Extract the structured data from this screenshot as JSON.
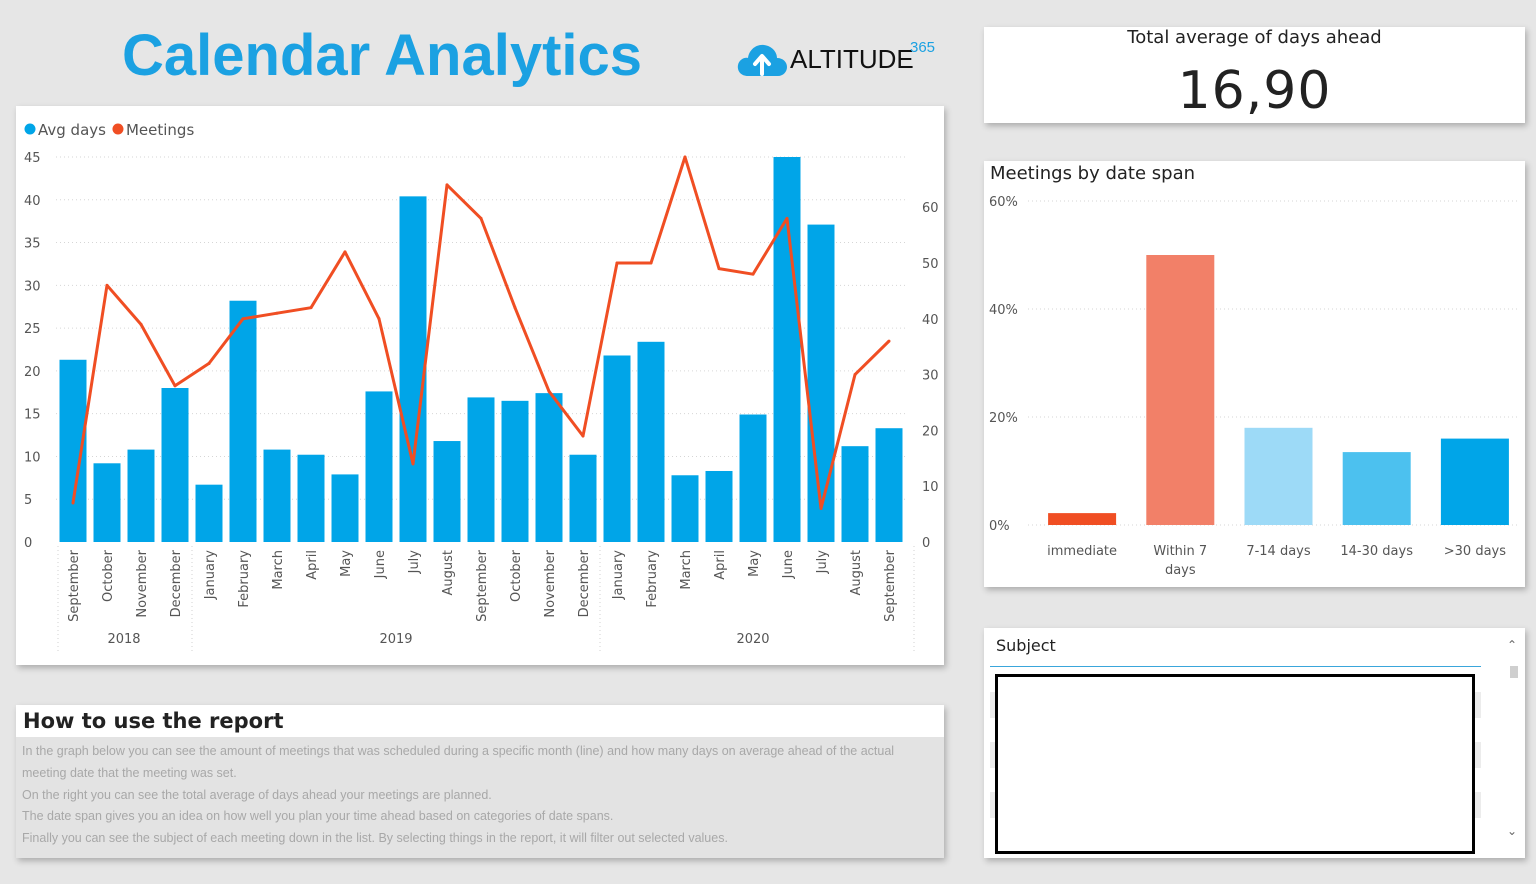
{
  "header": {
    "title": "Calendar Analytics",
    "logo_text": "ALTITUDE",
    "logo_sup": "365"
  },
  "kpi": {
    "label": "Total average of days ahead",
    "value": "16,90"
  },
  "colors": {
    "bar": "#00a5e8",
    "line": "#f04e23",
    "title": "#1ba1e2"
  },
  "chart_data": [
    {
      "type": "bar+line",
      "legend": [
        {
          "name": "Avg days",
          "color": "#00a5e8"
        },
        {
          "name": "Meetings",
          "color": "#f04e23"
        }
      ],
      "legend_position": "top-left",
      "categories": [
        "September",
        "October",
        "November",
        "December",
        "January",
        "February",
        "March",
        "April",
        "May",
        "June",
        "July",
        "August",
        "September",
        "October",
        "November",
        "December",
        "January",
        "February",
        "March",
        "April",
        "May",
        "June",
        "July",
        "August",
        "September"
      ],
      "years": [
        {
          "label": "2018",
          "start": 0,
          "end": 3
        },
        {
          "label": "2019",
          "start": 4,
          "end": 15
        },
        {
          "label": "2020",
          "start": 16,
          "end": 24
        }
      ],
      "series": [
        {
          "name": "Avg days",
          "type": "bar",
          "axis": "left",
          "values": [
            21.3,
            9.2,
            10.8,
            18,
            6.7,
            28.2,
            10.8,
            10.2,
            7.9,
            17.6,
            40.4,
            11.8,
            16.9,
            16.5,
            17.4,
            10.2,
            21.8,
            23.4,
            7.8,
            8.3,
            14.9,
            45,
            37.1,
            11.2,
            13.3
          ]
        },
        {
          "name": "Meetings",
          "type": "line",
          "axis": "right",
          "values": [
            7,
            46,
            39,
            28,
            32,
            40,
            41,
            42,
            52,
            40,
            14,
            64,
            58,
            42,
            27,
            19,
            50,
            50,
            69,
            49,
            48,
            58,
            6,
            30,
            36
          ]
        }
      ],
      "y_left": {
        "min": 0,
        "max": 45,
        "ticks": [
          0,
          5,
          10,
          15,
          20,
          25,
          30,
          35,
          40,
          45
        ]
      },
      "y_right": {
        "min": 0,
        "max": 69,
        "ticks": [
          0,
          10,
          20,
          30,
          40,
          50,
          60
        ]
      },
      "grid": true
    },
    {
      "type": "bar",
      "title": "Meetings by date span",
      "categories": [
        "immediate",
        "Within 7 days",
        "7-14 days",
        "14-30 days",
        ">30 days"
      ],
      "values": [
        2.2,
        50,
        18,
        13.5,
        16
      ],
      "colors": [
        "#f04e23",
        "#f28068",
        "#9ddaf7",
        "#4cc1ef",
        "#00a5e8"
      ],
      "ylim": [
        0,
        60
      ],
      "y_ticks": [
        "0%",
        "20%",
        "40%",
        "60%"
      ],
      "grid": true
    }
  ],
  "help": {
    "title": "How to use the report",
    "lines": [
      "In the graph below you can see the amount of meetings that was scheduled during a specific month (line) and how many days on average ahead of the actual",
      "meeting date that the meeting was set.",
      "On the right you can see the total average of days ahead your meetings are planned.",
      "The date span gives you an idea on how well you plan your time ahead based on categories of date spans.",
      "Finally you can see the subject of each meeting down in the list. By selecting things in the report, it will filter out selected values."
    ]
  },
  "table": {
    "header": "Subject"
  }
}
